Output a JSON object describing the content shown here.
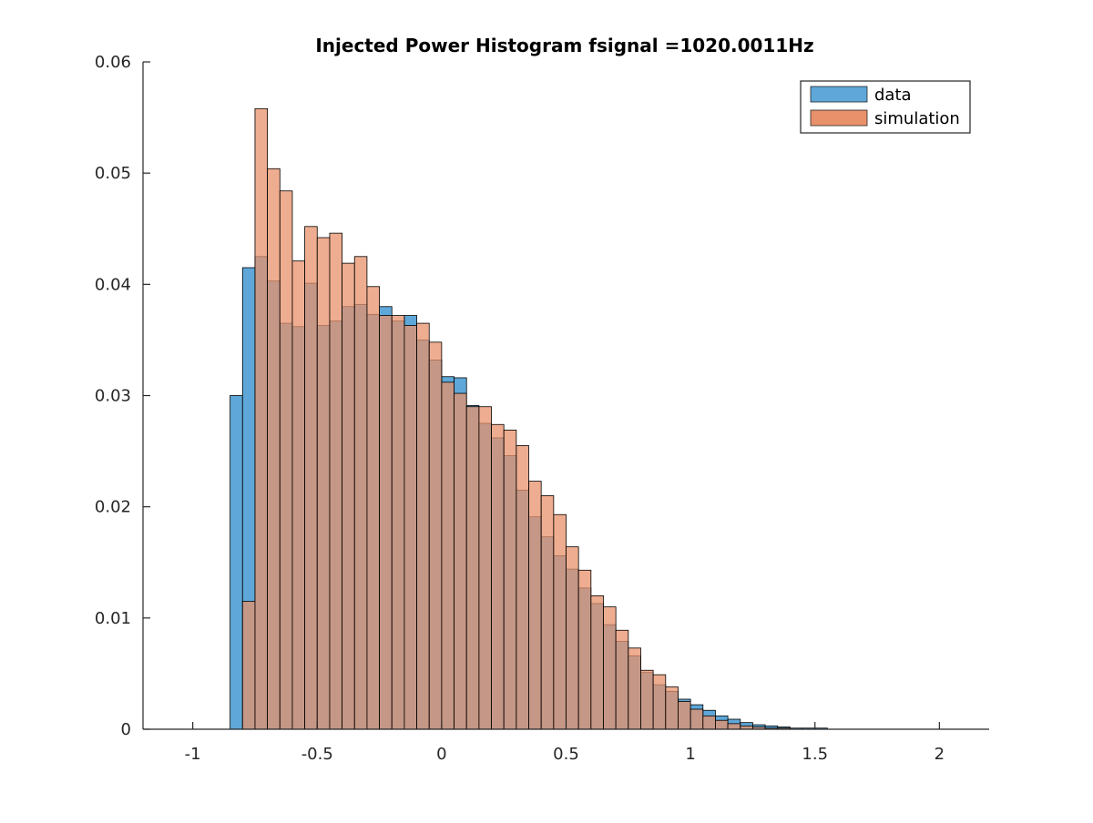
{
  "chart_data": {
    "type": "bar",
    "title": "Injected Power Histogram fsignal =1020.0011Hz",
    "xlabel": "",
    "ylabel": "",
    "xlim": [
      -1.2,
      2.2
    ],
    "ylim": [
      0,
      0.06
    ],
    "x_ticks": [
      -1,
      -0.5,
      0,
      0.5,
      1,
      1.5,
      2
    ],
    "x_tick_labels": [
      "-1",
      "-0.5",
      "0",
      "0.5",
      "1",
      "1.5",
      "2"
    ],
    "y_ticks": [
      0,
      0.01,
      0.02,
      0.03,
      0.04,
      0.05,
      0.06
    ],
    "y_tick_labels": [
      "0",
      "0.01",
      "0.02",
      "0.03",
      "0.04",
      "0.05",
      "0.06"
    ],
    "grid": false,
    "legend_position": "top-right",
    "bin_start": -0.85,
    "bin_width": 0.05,
    "series": [
      {
        "name": "data",
        "color": "#5ea7d8",
        "values": [
          0.03,
          0.0415,
          0.0425,
          0.0403,
          0.0365,
          0.0362,
          0.0401,
          0.0363,
          0.0367,
          0.038,
          0.0382,
          0.0373,
          0.038,
          0.0367,
          0.0372,
          0.035,
          0.0332,
          0.0317,
          0.0316,
          0.0291,
          0.0275,
          0.0262,
          0.0246,
          0.0215,
          0.0191,
          0.0173,
          0.0156,
          0.0144,
          0.0127,
          0.0113,
          0.0094,
          0.0079,
          0.0066,
          0.0051,
          0.004,
          0.0034,
          0.0027,
          0.0022,
          0.0017,
          0.0012,
          0.0009,
          0.0006,
          0.0004,
          0.0003,
          0.0002,
          0.0001,
          0.0001,
          0.0001
        ]
      },
      {
        "name": "simulation",
        "color": "#e8916b",
        "values": [
          0.0,
          0.0115,
          0.0558,
          0.0504,
          0.0484,
          0.0421,
          0.0452,
          0.0442,
          0.0446,
          0.0419,
          0.0425,
          0.0398,
          0.0372,
          0.0372,
          0.0363,
          0.0365,
          0.0348,
          0.0312,
          0.0302,
          0.029,
          0.029,
          0.0274,
          0.0269,
          0.0255,
          0.0223,
          0.021,
          0.0193,
          0.0164,
          0.0143,
          0.012,
          0.011,
          0.0089,
          0.0073,
          0.0053,
          0.0049,
          0.0038,
          0.0025,
          0.0018,
          0.0012,
          0.0008,
          0.0005,
          0.0003,
          0.0002,
          0.0001,
          0.0001,
          0.0,
          0.0,
          0.0
        ]
      }
    ]
  }
}
